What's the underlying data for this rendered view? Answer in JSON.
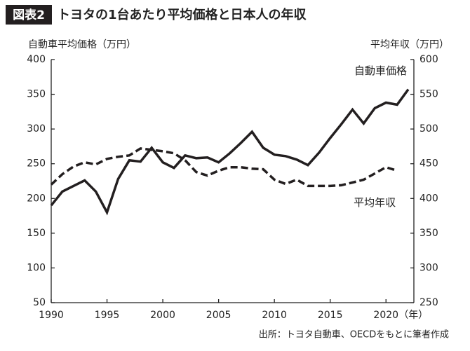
{
  "chart_data": {
    "type": "line",
    "label": "図表2",
    "title": "トヨタの1台あたり平均価格と日本人の年収",
    "y_label": "自動車平均価格（万円）",
    "y2_label": "平均年収（万円）",
    "x_unit_label": "（年）",
    "source": "出所：トヨタ自動車、OECDをもとに筆者作成",
    "x": [
      1990,
      1991,
      1992,
      1993,
      1994,
      1995,
      1996,
      1997,
      1998,
      1999,
      2000,
      2001,
      2002,
      2003,
      2004,
      2005,
      2006,
      2007,
      2008,
      2009,
      2010,
      2011,
      2012,
      2013,
      2014,
      2015,
      2016,
      2017,
      2018,
      2019,
      2020,
      2021,
      2022
    ],
    "series": [
      {
        "name": "自動車価格",
        "color": "#231f20",
        "dash": false,
        "values": [
          190,
          210,
          218,
          226,
          210,
          180,
          228,
          255,
          253,
          273,
          252,
          244,
          262,
          258,
          259,
          252,
          265,
          280,
          296,
          273,
          263,
          261,
          256,
          248,
          266,
          287,
          307,
          328,
          308,
          330,
          338,
          335,
          357
        ]
      },
      {
        "name": "平均年収",
        "color": "#231f20",
        "dash": true,
        "axis": "y2",
        "values": [
          420,
          435,
          446,
          452,
          449,
          457,
          460,
          462,
          472,
          470,
          468,
          465,
          455,
          438,
          433,
          440,
          445,
          445,
          443,
          442,
          427,
          421,
          427,
          418,
          418,
          418,
          419,
          423,
          427,
          436,
          445,
          440,
          null
        ]
      }
    ],
    "xlim": [
      1990,
      2022.5
    ],
    "xticks": [
      1990,
      1995,
      2000,
      2005,
      2010,
      2015,
      2020
    ],
    "ylim": [
      50,
      400
    ],
    "yticks": [
      50,
      100,
      150,
      200,
      250,
      300,
      350,
      400
    ],
    "y2lim": [
      250,
      600
    ],
    "y2ticks": [
      250,
      300,
      350,
      400,
      450,
      500,
      550,
      600
    ]
  }
}
